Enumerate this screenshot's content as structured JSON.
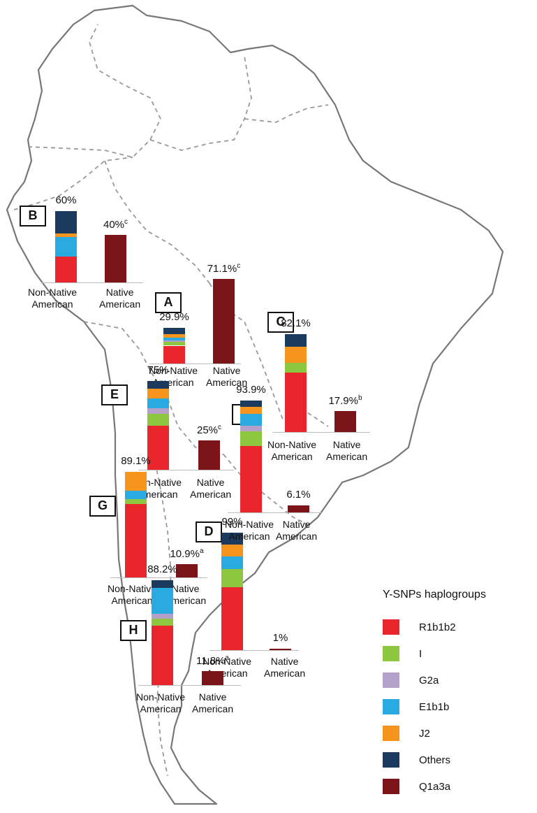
{
  "chart_data": {
    "type": "bar",
    "chart_kind": "stacked bar charts overlaid on a map of South America",
    "legend": {
      "title": "Y-SNPs haplogroups",
      "placement": "bottom-right",
      "items": [
        {
          "name": "R1b1b2",
          "color": "#e8262b"
        },
        {
          "name": "I",
          "color": "#8dc63f"
        },
        {
          "name": "G2a",
          "color": "#b4a0c8"
        },
        {
          "name": "E1b1b",
          "color": "#29abe2"
        },
        {
          "name": "J2",
          "color": "#f7941d"
        },
        {
          "name": "Others",
          "color": "#1c3a5e"
        },
        {
          "name": "Q1a3a",
          "color": "#7a1418"
        }
      ]
    },
    "categories": [
      "Non-Native American",
      "Native American"
    ],
    "regions": [
      {
        "id": "A",
        "non_native_label": "29.9%",
        "non_native_value": 29.9,
        "non_native_breakdown": {
          "R1b1b2": 15.0,
          "I": 3.0,
          "G2a": 1.5,
          "E1b1b": 2.5,
          "J2": 2.5,
          "Others": 5.4
        },
        "native_label": "71.1%",
        "native_value": 71.1,
        "native_note": "c"
      },
      {
        "id": "B",
        "non_native_label": "60%",
        "non_native_value": 60,
        "non_native_breakdown": {
          "R1b1b2": 22.0,
          "I": 0,
          "G2a": 0,
          "E1b1b": 16.0,
          "J2": 3.0,
          "Others": 19.0
        },
        "native_label": "40%",
        "native_value": 40,
        "native_note": "c"
      },
      {
        "id": "C",
        "non_native_label": "82.1%",
        "non_native_value": 82.1,
        "non_native_breakdown": {
          "R1b1b2": 50.0,
          "I": 8.0,
          "G2a": 0,
          "E1b1b": 0,
          "J2": 14.0,
          "Others": 10.1
        },
        "native_label": "17.9%",
        "native_value": 17.9,
        "native_note": "b"
      },
      {
        "id": "D",
        "non_native_label": "99%",
        "non_native_value": 99,
        "non_native_breakdown": {
          "R1b1b2": 53.0,
          "I": 15.0,
          "G2a": 0,
          "E1b1b": 11.0,
          "J2": 10.0,
          "Others": 10.0
        },
        "native_label": "1%",
        "native_value": 1,
        "native_note": ""
      },
      {
        "id": "E",
        "non_native_label": "75%",
        "non_native_value": 75,
        "non_native_breakdown": {
          "R1b1b2": 37.0,
          "I": 10.0,
          "G2a": 5.0,
          "E1b1b": 8.0,
          "J2": 8.0,
          "Others": 7.0
        },
        "native_label": "25%",
        "native_value": 25,
        "native_note": "c"
      },
      {
        "id": "F",
        "non_native_label": "93.9%",
        "non_native_value": 93.9,
        "non_native_breakdown": {
          "R1b1b2": 56.0,
          "I": 12.0,
          "G2a": 5.0,
          "E1b1b": 10.0,
          "J2": 6.0,
          "Others": 4.9
        },
        "native_label": "6.1%",
        "native_value": 6.1,
        "native_note": ""
      },
      {
        "id": "G",
        "non_native_label": "89.1%",
        "non_native_value": 89.1,
        "non_native_breakdown": {
          "R1b1b2": 62.0,
          "I": 4.0,
          "G2a": 0,
          "E1b1b": 7.0,
          "J2": 16.1,
          "Others": 0
        },
        "native_label": "10.9%",
        "native_value": 10.9,
        "native_note": "a"
      },
      {
        "id": "H",
        "non_native_label": "88.2%",
        "non_native_value": 88.2,
        "non_native_breakdown": {
          "R1b1b2": 50.0,
          "I": 6.0,
          "G2a": 4.0,
          "E1b1b": 22.0,
          "J2": 0,
          "Others": 6.2
        },
        "native_label": "11.8%",
        "native_value": 11.8,
        "native_note": "a"
      }
    ]
  }
}
